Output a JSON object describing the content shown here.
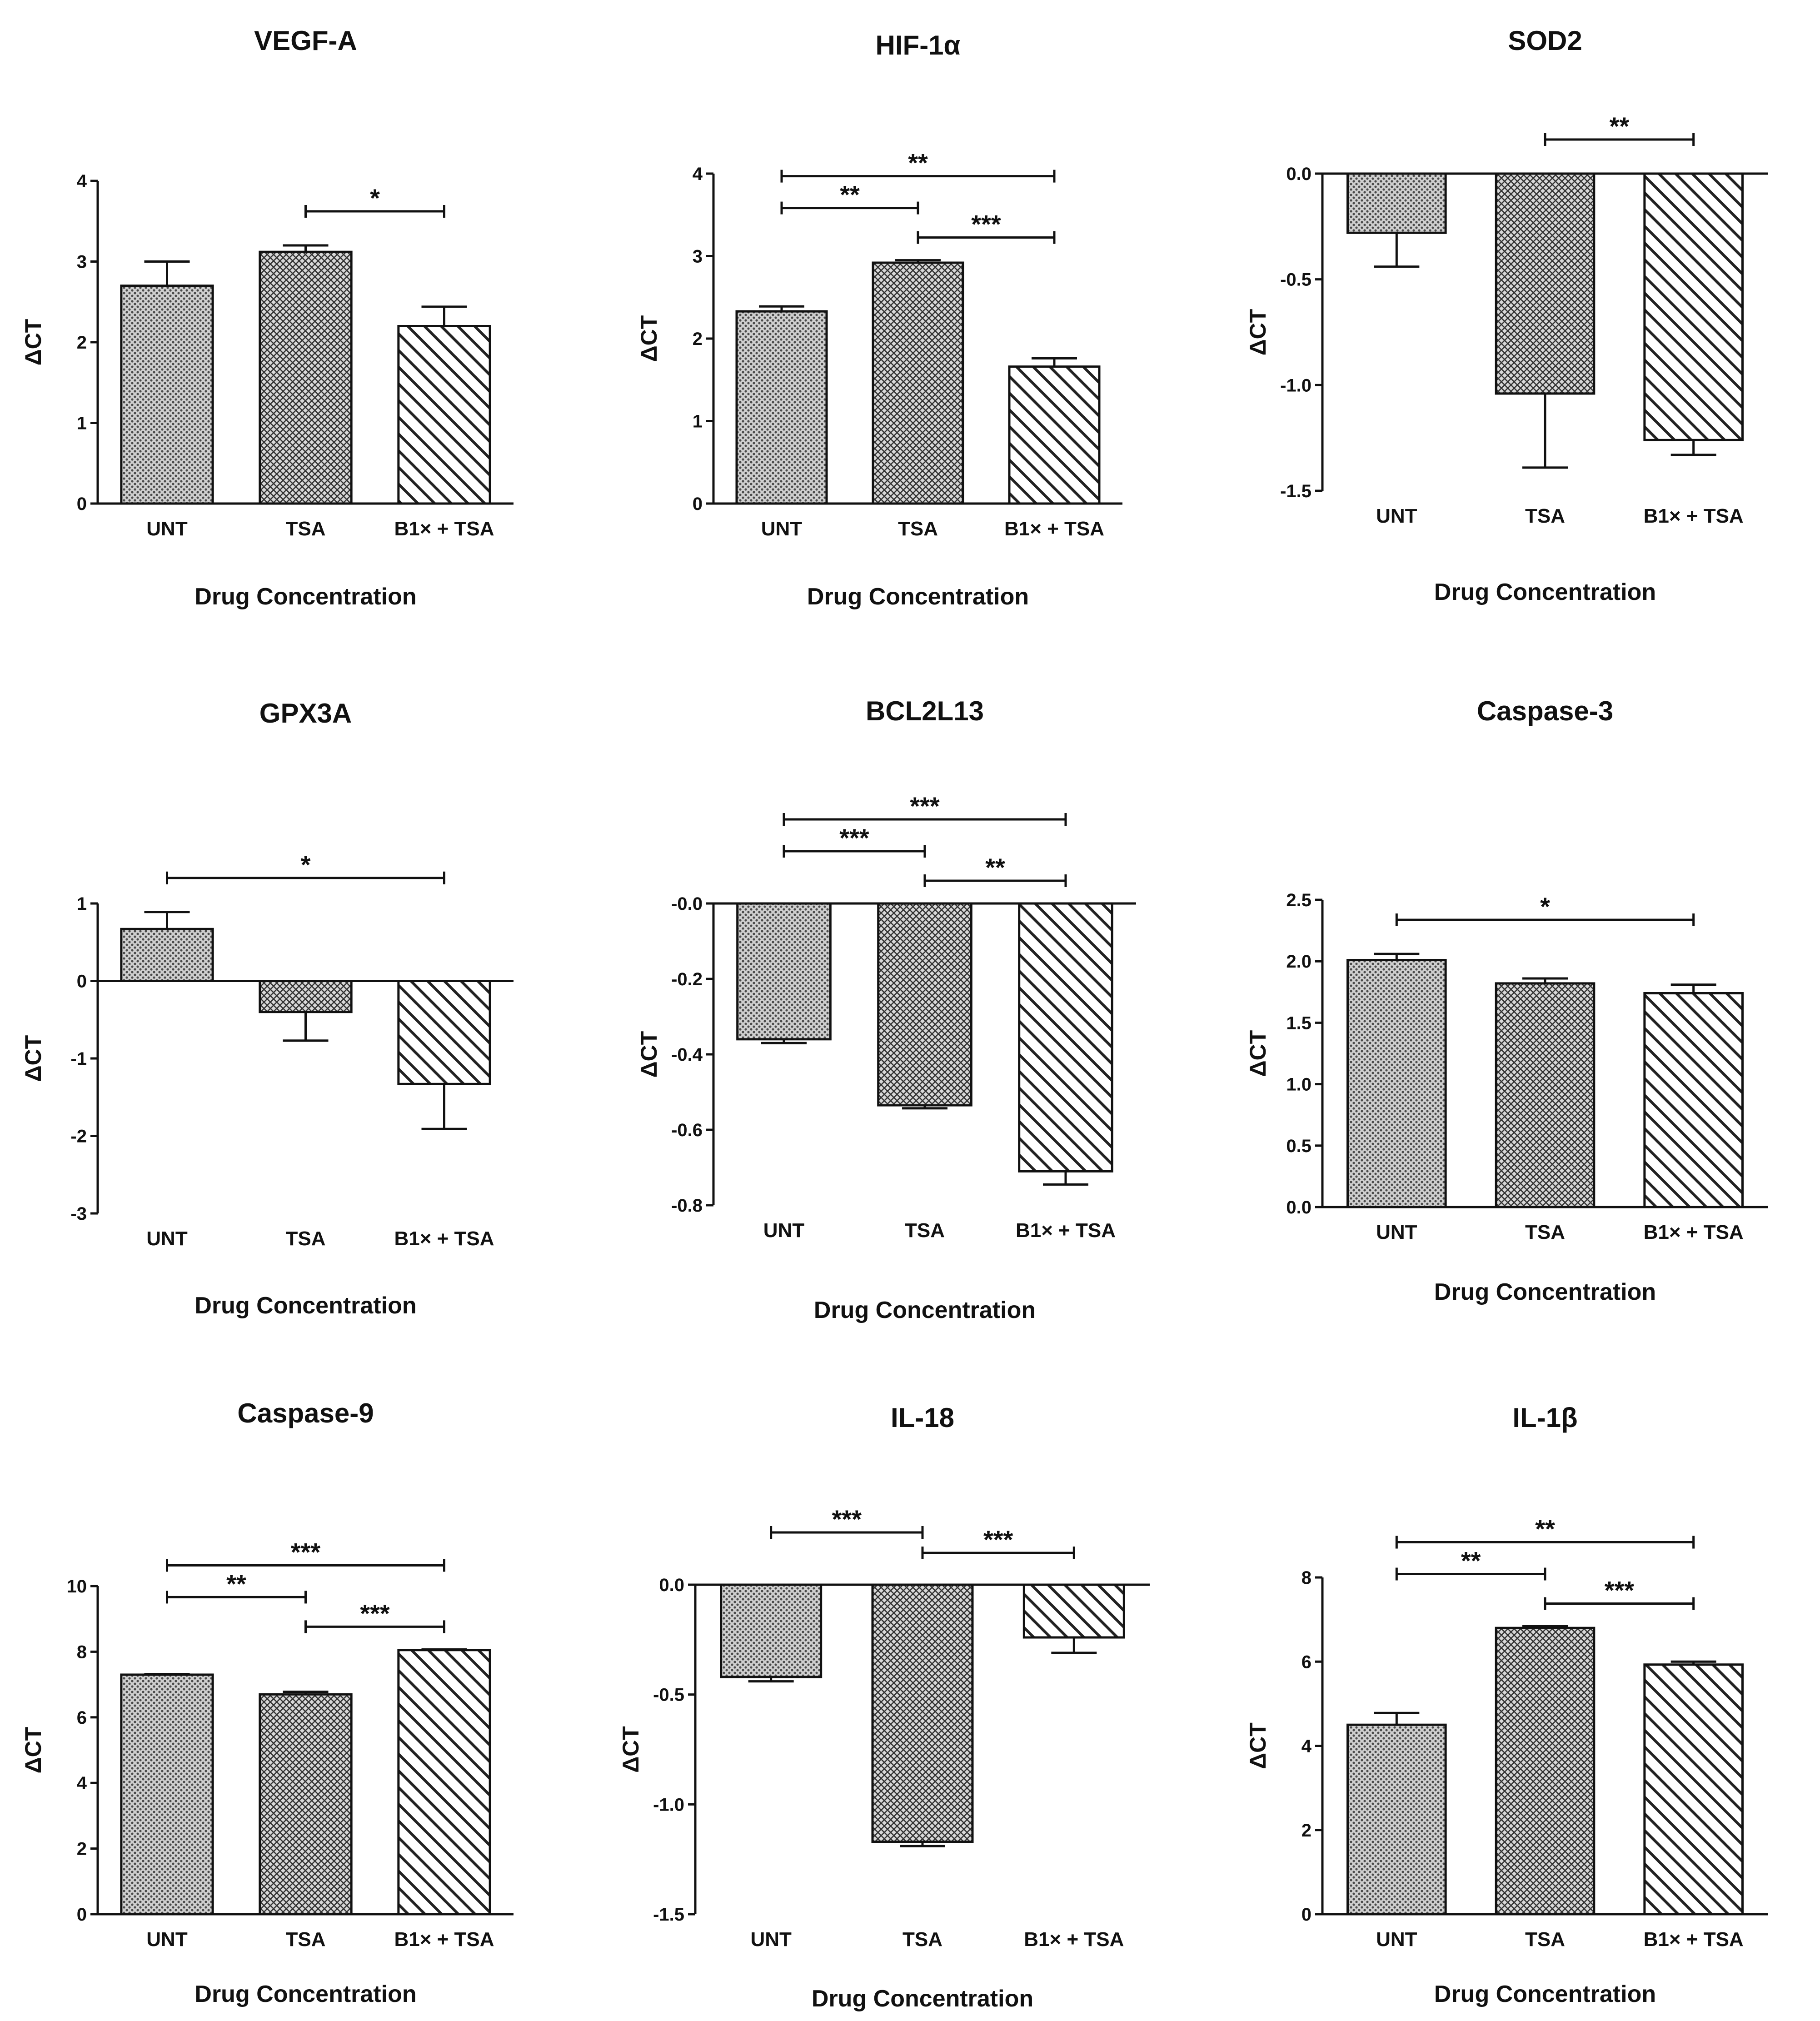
{
  "chart_data": [
    {
      "type": "bar",
      "title": "VEGF-A",
      "xlabel": "Drug Concentration",
      "ylabel": "ΔCT",
      "categories": [
        "UNT",
        "TSA",
        "B1× + TSA"
      ],
      "values": [
        2.7,
        3.12,
        2.2
      ],
      "errors": [
        0.3,
        0.08,
        0.24
      ],
      "ylim": [
        0,
        4
      ],
      "yticks": [
        "0",
        "1",
        "2",
        "3",
        "4"
      ],
      "significance": [
        {
          "from": 1,
          "to": 2,
          "label": "*"
        }
      ]
    },
    {
      "type": "bar",
      "title": "HIF-1α",
      "xlabel": "Drug Concentration",
      "ylabel": "ΔCT",
      "categories": [
        "UNT",
        "TSA",
        "B1× + TSA"
      ],
      "values": [
        2.33,
        2.92,
        1.66
      ],
      "errors": [
        0.06,
        0.03,
        0.1
      ],
      "ylim": [
        0,
        4
      ],
      "yticks": [
        "0",
        "1",
        "2",
        "3",
        "4"
      ],
      "significance": [
        {
          "from": 0,
          "to": 2,
          "label": "**"
        },
        {
          "from": 0,
          "to": 1,
          "label": "**"
        },
        {
          "from": 1,
          "to": 2,
          "label": "***"
        }
      ]
    },
    {
      "type": "bar",
      "title": "SOD2",
      "xlabel": "Drug Concentration",
      "ylabel": "ΔCT",
      "categories": [
        "UNT",
        "TSA",
        "B1× + TSA"
      ],
      "values": [
        -0.28,
        -1.04,
        -1.26
      ],
      "errors": [
        0.16,
        0.35,
        0.07
      ],
      "ylim": [
        -1.5,
        0
      ],
      "yticks": [
        "0.0",
        "-0.5",
        "-1.0",
        "-1.5"
      ],
      "significance": [
        {
          "from": 1,
          "to": 2,
          "label": "**"
        }
      ]
    },
    {
      "type": "bar",
      "title": "GPX3A",
      "xlabel": "Drug Concentration",
      "ylabel": "ΔCT",
      "categories": [
        "UNT",
        "TSA",
        "B1× + TSA"
      ],
      "values": [
        0.67,
        -0.4,
        -1.33
      ],
      "errors": [
        0.22,
        0.37,
        0.58
      ],
      "ylim": [
        -3,
        1
      ],
      "yticks": [
        "1",
        "0",
        "-1",
        "-2",
        "-3"
      ],
      "significance": [
        {
          "from": 0,
          "to": 2,
          "label": "*"
        }
      ]
    },
    {
      "type": "bar",
      "title": "BCL2L13",
      "xlabel": "Drug Concentration",
      "ylabel": "ΔCT",
      "categories": [
        "UNT",
        "TSA",
        "B1× + TSA"
      ],
      "values": [
        -0.36,
        -0.535,
        -0.71
      ],
      "errors": [
        0.01,
        0.008,
        0.035
      ],
      "ylim": [
        -0.8,
        0
      ],
      "yticks": [
        "-0.0",
        "-0.2",
        "-0.4",
        "-0.6",
        "-0.8"
      ],
      "significance": [
        {
          "from": 0,
          "to": 2,
          "label": "***"
        },
        {
          "from": 0,
          "to": 1,
          "label": "***"
        },
        {
          "from": 1,
          "to": 2,
          "label": "**"
        }
      ]
    },
    {
      "type": "bar",
      "title": "Caspase-3",
      "xlabel": "Drug Concentration",
      "ylabel": "ΔCT",
      "categories": [
        "UNT",
        "TSA",
        "B1× + TSA"
      ],
      "values": [
        2.01,
        1.82,
        1.74
      ],
      "errors": [
        0.05,
        0.04,
        0.07
      ],
      "ylim": [
        0,
        2.5
      ],
      "yticks": [
        "0.0",
        "0.5",
        "1.0",
        "1.5",
        "2.0",
        "2.5"
      ],
      "significance": [
        {
          "from": 0,
          "to": 2,
          "label": "*"
        }
      ]
    },
    {
      "type": "bar",
      "title": "Caspase-9",
      "xlabel": "Drug Concentration",
      "ylabel": "ΔCT",
      "categories": [
        "UNT",
        "TSA",
        "B1× + TSA"
      ],
      "values": [
        7.3,
        6.7,
        8.05
      ],
      "errors": [
        0.02,
        0.08,
        0.02
      ],
      "ylim": [
        0,
        10
      ],
      "yticks": [
        "0",
        "2",
        "4",
        "6",
        "8",
        "10"
      ],
      "significance": [
        {
          "from": 0,
          "to": 2,
          "label": "***"
        },
        {
          "from": 0,
          "to": 1,
          "label": "**"
        },
        {
          "from": 1,
          "to": 2,
          "label": "***"
        }
      ]
    },
    {
      "type": "bar",
      "title": "IL-18",
      "xlabel": "Drug Concentration",
      "ylabel": "ΔCT",
      "categories": [
        "UNT",
        "TSA",
        "B1× + TSA"
      ],
      "values": [
        -0.42,
        -1.17,
        -0.24
      ],
      "errors": [
        0.02,
        0.02,
        0.07
      ],
      "ylim": [
        -1.5,
        0
      ],
      "yticks": [
        "0.0",
        "-0.5",
        "-1.0",
        "-1.5"
      ],
      "significance": [
        {
          "from": 0,
          "to": 1,
          "label": "***"
        },
        {
          "from": 1,
          "to": 2,
          "label": "***"
        }
      ]
    },
    {
      "type": "bar",
      "title": "IL-1β",
      "xlabel": "Drug Concentration",
      "ylabel": "ΔCT",
      "categories": [
        "UNT",
        "TSA",
        "B1× + TSA"
      ],
      "values": [
        4.5,
        6.8,
        5.93
      ],
      "errors": [
        0.28,
        0.04,
        0.07
      ],
      "ylim": [
        0,
        8
      ],
      "yticks": [
        "0",
        "2",
        "4",
        "6",
        "8"
      ],
      "significance": [
        {
          "from": 0,
          "to": 2,
          "label": "**"
        },
        {
          "from": 0,
          "to": 1,
          "label": "**"
        },
        {
          "from": 1,
          "to": 2,
          "label": "***"
        }
      ]
    }
  ],
  "patterns": [
    "dense-dots",
    "crosshatch",
    "diagonal-lines"
  ]
}
